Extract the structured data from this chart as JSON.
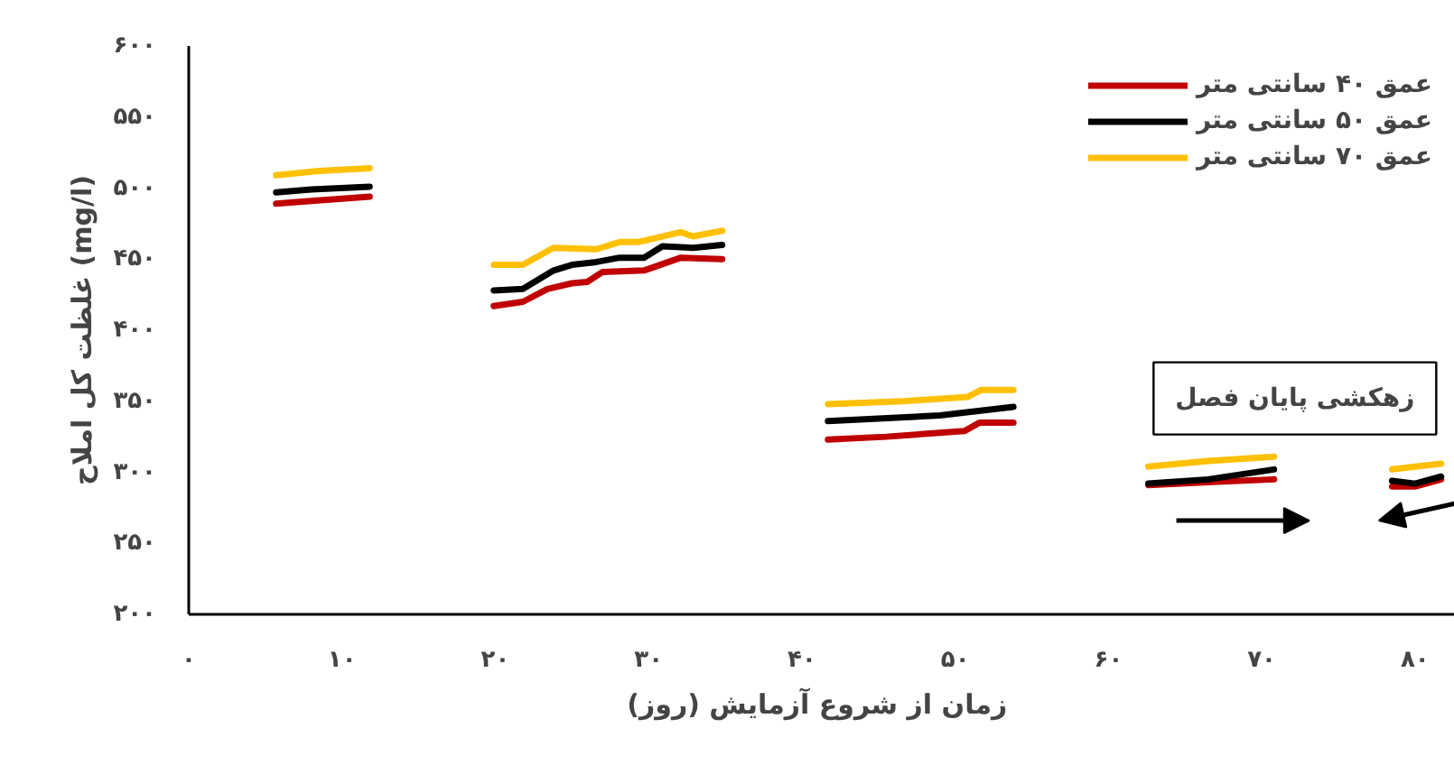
{
  "chart_data": {
    "type": "line",
    "xlabel": "زمان از شروع آزمایش  (روز)",
    "ylabel": "غلظت کل املاح (mg/l)",
    "xlim": [
      0,
      82.6
    ],
    "ylim": [
      200,
      600
    ],
    "xticks": [
      {
        "value": 0,
        "label": "۰"
      },
      {
        "value": 10,
        "label": "۱۰"
      },
      {
        "value": 20,
        "label": "۲۰"
      },
      {
        "value": 30,
        "label": "۳۰"
      },
      {
        "value": 40,
        "label": "۴۰"
      },
      {
        "value": 50,
        "label": "۵۰"
      },
      {
        "value": 60,
        "label": "۶۰"
      },
      {
        "value": 70,
        "label": "۷۰"
      },
      {
        "value": 80,
        "label": "۸۰"
      }
    ],
    "yticks": [
      {
        "value": 200,
        "label": "۲۰۰"
      },
      {
        "value": 250,
        "label": "۲۵۰"
      },
      {
        "value": 300,
        "label": "۳۰۰"
      },
      {
        "value": 350,
        "label": "۳۵۰"
      },
      {
        "value": 400,
        "label": "۴۰۰"
      },
      {
        "value": 450,
        "label": "۴۵۰"
      },
      {
        "value": 500,
        "label": "۵۰۰"
      },
      {
        "value": 550,
        "label": "۵۵۰"
      },
      {
        "value": 600,
        "label": "۶۰۰"
      }
    ],
    "grid": false,
    "legend": "top right",
    "marker": "none",
    "line_style": "solid",
    "annotations": [
      "زهکشی پایان فصل"
    ],
    "series": [
      {
        "name": "عمق ۴۰ سانتی متر",
        "color": "#c00000",
        "x": [
          5.7,
          8,
          11.8,
          null,
          19.9,
          21.8,
          23.4,
          25.0,
          26.0,
          27.0,
          29.7,
          32.1,
          34.8,
          null,
          41.7,
          45.5,
          50.6,
          51.6,
          53.8,
          null,
          62.6,
          66.5,
          70.8,
          null,
          78.5,
          80,
          81.7
        ],
        "values": [
          489,
          491,
          494,
          null,
          417,
          420,
          429,
          433,
          434,
          441,
          442,
          451,
          450,
          null,
          323,
          325,
          329,
          335,
          335,
          null,
          291,
          293,
          295,
          null,
          290,
          290,
          295
        ]
      },
      {
        "name": "عمق ۵۰ سانتی متر",
        "color": "#000000",
        "x": [
          5.7,
          8,
          11.8,
          null,
          19.9,
          21.8,
          23.8,
          25.0,
          26.6,
          28.1,
          29.7,
          30.9,
          32.9,
          34.8,
          null,
          41.7,
          49.0,
          53.8,
          null,
          62.6,
          66.5,
          70.8,
          null,
          78.5,
          80,
          81.7
        ],
        "values": [
          497,
          499,
          501,
          null,
          428,
          429,
          442,
          446,
          448,
          451,
          451,
          459,
          458,
          460,
          null,
          336,
          340,
          346,
          null,
          292,
          295,
          302,
          null,
          294,
          292,
          297
        ]
      },
      {
        "name": "عمق ۷۰ سانتی متر",
        "color": "#ffc000",
        "x": [
          5.7,
          8.5,
          11.8,
          null,
          19.9,
          21.8,
          23.8,
          26.6,
          28.1,
          29.3,
          32.1,
          32.9,
          34.8,
          null,
          41.7,
          46.6,
          50.8,
          51.7,
          53.8,
          null,
          62.6,
          66.5,
          70.8,
          null,
          78.5,
          81.7
        ],
        "values": [
          509,
          512,
          514,
          null,
          446,
          446,
          458,
          457,
          462,
          462,
          469,
          466,
          470,
          null,
          348,
          350,
          353,
          358,
          358,
          null,
          304,
          308,
          311,
          null,
          302,
          306
        ]
      }
    ]
  }
}
